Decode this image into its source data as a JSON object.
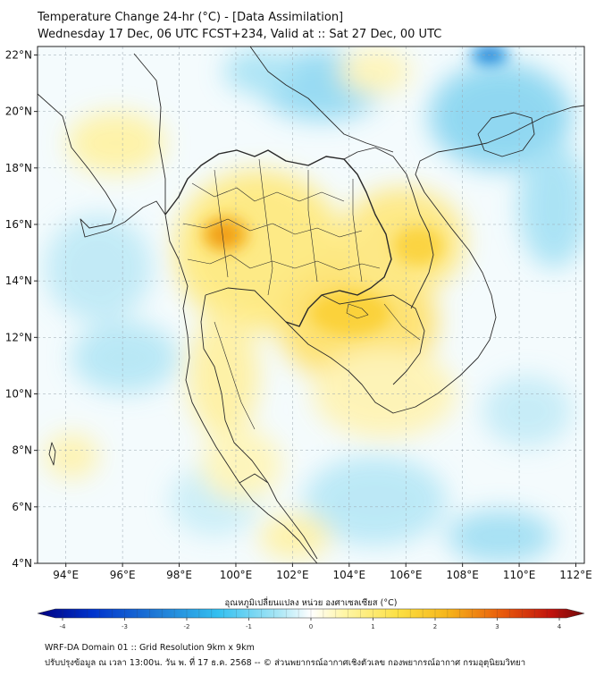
{
  "header": {
    "title_line1": "Temperature Change 24-hr (°C) - [Data Assimilation]",
    "title_line2": "Wednesday 17 Dec, 06 UTC FCST+234, Valid at :: Sat 27 Dec, 00 UTC"
  },
  "map": {
    "lat_range": [
      4,
      22.3
    ],
    "lon_range": [
      93,
      112.3
    ],
    "lat_labels": [
      "4°N",
      "6°N",
      "8°N",
      "10°N",
      "12°N",
      "14°N",
      "16°N",
      "18°N",
      "20°N",
      "22°N"
    ],
    "lat_values": [
      4,
      6,
      8,
      10,
      12,
      14,
      16,
      18,
      20,
      22
    ],
    "lon_labels": [
      "94°E",
      "96°E",
      "98°E",
      "100°E",
      "102°E",
      "104°E",
      "106°E",
      "108°E",
      "110°E",
      "112°E"
    ],
    "lon_values": [
      94,
      96,
      98,
      100,
      102,
      104,
      106,
      108,
      110,
      112
    ],
    "grid_on": true
  },
  "colorbar": {
    "label": "อุณหภูมิเปลี่ยนแปลง หน่วย องศาเซลเซียส (°C)",
    "tick_labels": [
      "-4",
      "-3",
      "-2",
      "-1",
      "0",
      "1",
      "2",
      "3",
      "4"
    ],
    "tick_values": [
      -4,
      -3,
      -2,
      -1,
      0,
      1,
      2,
      3,
      4
    ],
    "range": [
      -4,
      4
    ],
    "colors": [
      "#000080",
      "#0033cc",
      "#1f7bd6",
      "#33c0f0",
      "#a8e6f5",
      "#ffffff",
      "#fff6a8",
      "#fce043",
      "#f6b51a",
      "#e85a0c",
      "#c0120d",
      "#6e0a0a"
    ]
  },
  "footer": {
    "line1": "WRF-DA Domain 01 :: Grid Resolution 9km x 9km",
    "line2": "ปรับปรุงข้อมูล ณ เวลา 13:00น. วัน พ. ที่ 17 ธ.ค. 2568 -- © ส่วนพยากรณ์อากาศเชิงตัวเลข กองพยากรณ์อากาศ กรมอุตุนิยมวิทยา"
  }
}
